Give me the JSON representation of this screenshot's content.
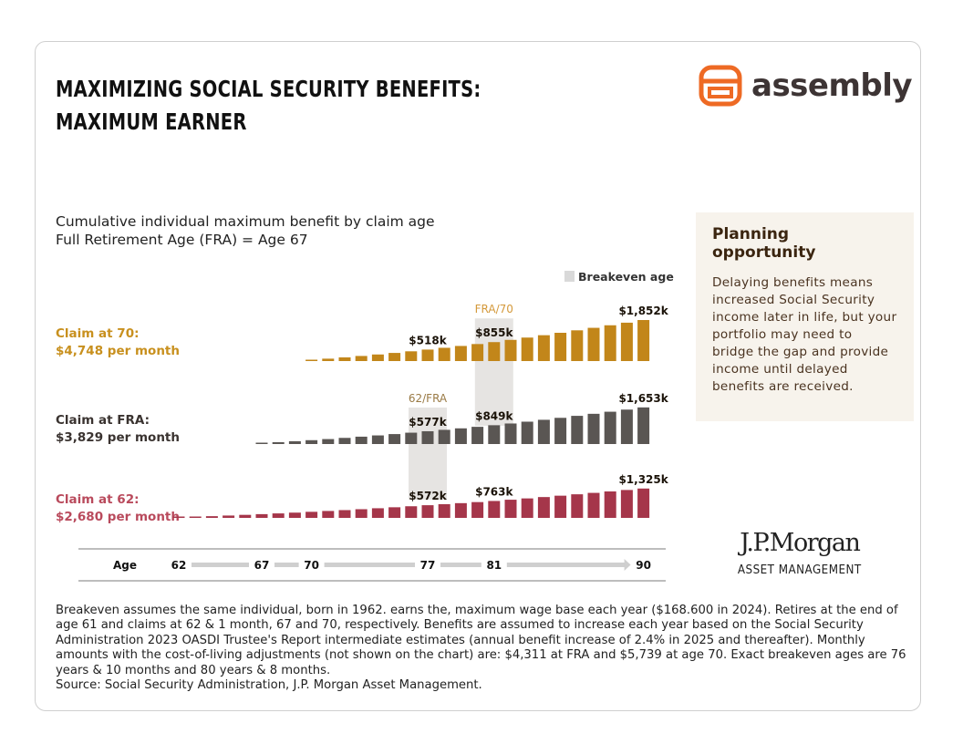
{
  "header": {
    "title_line1": "MAXIMIZING SOCIAL SECURITY BENEFITS:",
    "title_line2": "MAXIMUM EARNER",
    "logo_text": "assembly",
    "brand_color": "#ee6a24"
  },
  "subtitle": {
    "line1": "Cumulative individual maximum benefit by claim age",
    "line2": "Full Retirement Age (FRA) = Age 67"
  },
  "sidebar": {
    "heading": "Planning opportunity",
    "body": "Delaying benefits means increased Social Security income later in life, but your portfolio may need to bridge the gap and provide income until delayed benefits are received."
  },
  "jpmorgan": {
    "name": "J.P.Morgan",
    "sub": "ASSET MANAGEMENT"
  },
  "footnote": {
    "text": "Breakeven assumes the same individual, born in 1962. earns the, maximum wage base each year ($168.600 in 2024). Retires at the end of age 61 and claims at 62 & 1 month, 67 and 70, respectively. Benefits are assumed to increase each year based on the Social Security Administration 2023 OASDI Trustee's Report intermediate estimates (annual benefit increase of 2.4% in 2025 and thereafter). Monthly amounts with the cost-of-living adjustments (not shown on the chart) are: $4,311 at FRA and $5,739 at age 70. Exact breakeven ages are 76 years & 10 months and 80 years & 8 months.",
    "source": "Source: Social Security Administration, J.P. Morgan Asset Management."
  },
  "chart_data": {
    "type": "bar",
    "unit": "$k cumulative",
    "legend": {
      "label": "Breakeven age",
      "color": "#d9d9d9",
      "placement": "top-right"
    },
    "x_axis": {
      "label": "Age",
      "ticks": [
        "62",
        "67",
        "70",
        "77",
        "81",
        "90"
      ]
    },
    "breakeven": [
      {
        "age": 77,
        "label": "62/FRA",
        "color": "#9a7a45",
        "rows": [
          "claim_fra",
          "claim_62"
        ]
      },
      {
        "age": 81,
        "label": "FRA/70",
        "color": "#d4993b",
        "rows": [
          "claim_70",
          "claim_fra"
        ]
      }
    ],
    "series": [
      {
        "id": "claim_70",
        "title": "Claim at 70:",
        "monthly": "$4,748 per month",
        "color": "#c2861a",
        "label_color": "#c8901e",
        "start_age": 70,
        "values": [
          52,
          108,
          167,
          230,
          297,
          367,
          440,
          518,
          599,
          682,
          768,
          855,
          956,
          1060,
          1167,
          1276,
          1387,
          1500,
          1615,
          1732,
          1852
        ],
        "data_labels": [
          {
            "age": 77,
            "text": "$518k"
          },
          {
            "age": 81,
            "text": "$855k"
          },
          {
            "age": 90,
            "text": "$1,852k"
          }
        ]
      },
      {
        "id": "claim_fra",
        "title": "Claim at FRA:",
        "monthly": "$3,829 per month",
        "color": "#5a5653",
        "label_color": "#3a3330",
        "start_age": 67,
        "values": [
          40,
          82,
          127,
          174,
          224,
          277,
          332,
          389,
          449,
          512,
          577,
          641,
          708,
          777,
          849,
          927,
          1009,
          1094,
          1182,
          1272,
          1364,
          1458,
          1554,
          1653
        ],
        "data_labels": [
          {
            "age": 77,
            "text": "$577k"
          },
          {
            "age": 81,
            "text": "$849k"
          },
          {
            "age": 90,
            "text": "$1,653k"
          }
        ]
      },
      {
        "id": "claim_62",
        "title": "Claim at 62:",
        "monthly": "$2,680 per month",
        "color": "#a5364a",
        "label_color": "#b94a5c",
        "start_age": 62,
        "values": [
          24,
          50,
          77,
          106,
          137,
          169,
          202,
          237,
          274,
          312,
          351,
          392,
          435,
          479,
          525,
          572,
          618,
          665,
          713,
          763,
          820,
          879,
          940,
          1002,
          1065,
          1129,
          1194,
          1259,
          1325
        ],
        "data_labels": [
          {
            "age": 77,
            "text": "$572k"
          },
          {
            "age": 81,
            "text": "$763k"
          },
          {
            "age": 90,
            "text": "$1,325k"
          }
        ]
      }
    ]
  }
}
